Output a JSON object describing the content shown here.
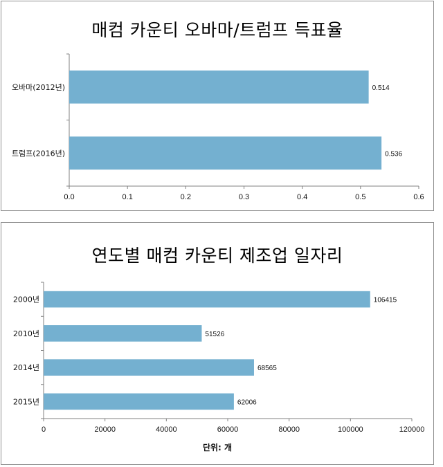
{
  "colors": {
    "bar": "#74b0d0",
    "axis": "#808080",
    "border": "#8c8c8c"
  },
  "chart_data": [
    {
      "type": "bar",
      "orientation": "horizontal",
      "title": "매컴 카운티 오바마/트럼프 득표율",
      "categories": [
        "오바마(2012년)",
        "트럼프(2016년)"
      ],
      "values": [
        0.514,
        0.536
      ],
      "value_labels": [
        "0.514",
        "0.536"
      ],
      "xlim": [
        0,
        0.6
      ],
      "xticks": [
        "0.0",
        "0.1",
        "0.2",
        "0.3",
        "0.4",
        "0.5",
        "0.6"
      ],
      "grid": false,
      "legend": "none"
    },
    {
      "type": "bar",
      "orientation": "horizontal",
      "title": "연도별 매컴 카운티 제조업 일자리",
      "categories": [
        "2000년",
        "2010년",
        "2014년",
        "2015년"
      ],
      "values": [
        106415,
        51526,
        68565,
        62006
      ],
      "value_labels": [
        "106415",
        "51526",
        "68565",
        "62006"
      ],
      "xlim": [
        0,
        120000
      ],
      "xticks": [
        "0",
        "20000",
        "40000",
        "60000",
        "80000",
        "100000",
        "120000"
      ],
      "xlabel": "단위: 개",
      "grid": false,
      "legend": "none"
    }
  ]
}
